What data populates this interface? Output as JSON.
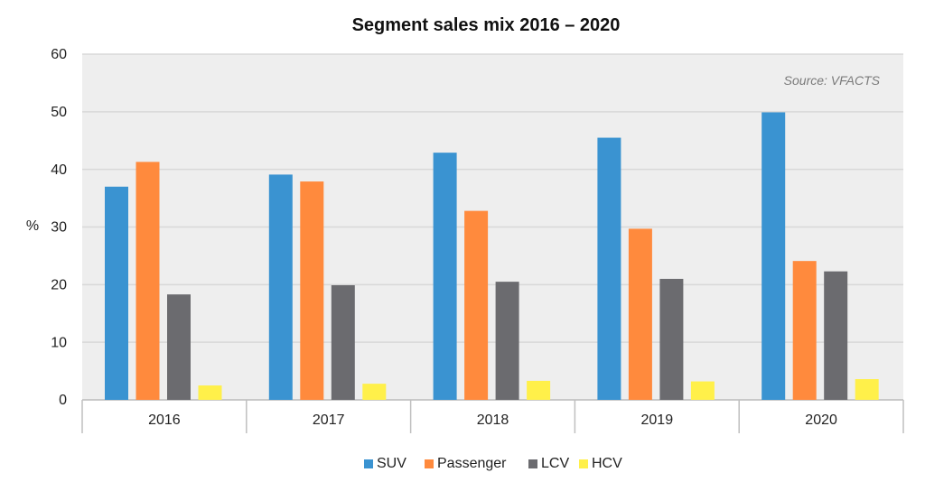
{
  "chart_data": {
    "type": "bar",
    "title": "Segment sales mix 2016 – 2020",
    "source": "Source: VFACTS",
    "ylabel": "%",
    "xlabel": "",
    "ylim": [
      0,
      60
    ],
    "yticks": [
      "0",
      "10",
      "20",
      "30",
      "40",
      "50",
      "60"
    ],
    "grid": true,
    "legend_position": "bottom",
    "categories": [
      "2016",
      "2017",
      "2018",
      "2019",
      "2020"
    ],
    "series": [
      {
        "name": "SUV",
        "color": "#3a93d1",
        "values": [
          37.0,
          39.1,
          42.9,
          45.5,
          49.9
        ]
      },
      {
        "name": "Passenger",
        "color": "#ff8a3d",
        "values": [
          41.3,
          37.9,
          32.8,
          29.7,
          24.1
        ]
      },
      {
        "name": "LCV",
        "color": "#6b6b6f",
        "values": [
          18.3,
          19.9,
          20.5,
          21.0,
          22.3
        ]
      },
      {
        "name": "HCV",
        "color": "#fff04a",
        "values": [
          2.5,
          2.8,
          3.3,
          3.2,
          3.6
        ]
      }
    ]
  },
  "colors": {
    "plot_background": "#eeeeee",
    "gridline": "#d8d8d8",
    "axis": "#bfbfbf"
  }
}
